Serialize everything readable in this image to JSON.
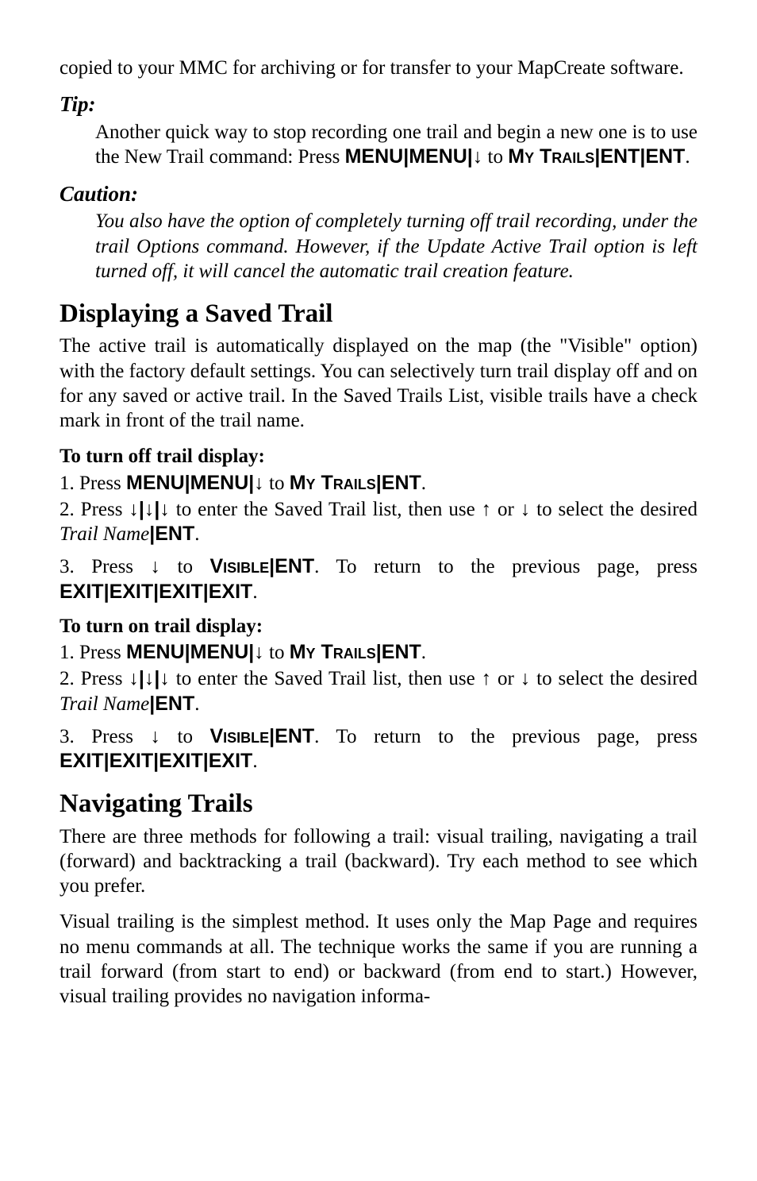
{
  "intro": "copied to your MMC for archiving or for transfer to your MapCreate software.",
  "tip": {
    "label": "Tip:",
    "body_pre": "Another quick way to stop recording one trail and begin a new one is to use the New Trail command: Press ",
    "keys1": "MENU",
    "sep": "|",
    "keys2": "MENU",
    "arrow_down": "↓",
    "to": " to ",
    "my": "My ",
    "trails_sc": "Trails",
    "ent": "ENT",
    "period": "."
  },
  "caution": {
    "label": "Caution:",
    "body": "You also have the option of completely turning off trail recording, under the trail Options command. However, if the Update Active Trail option is left turned off, it will cancel the automatic trail creation feature."
  },
  "displaying": {
    "heading": "Displaying a Saved Trail",
    "body": "The active trail is automatically displayed on the map (the \"Visible\" option) with the factory default settings. You can selectively turn trail display off and on for any saved or active trail. In the Saved Trails List, visible trails have a check mark in front of the trail name."
  },
  "off": {
    "subhead": "To turn off trail display:",
    "s1_pre": "1. Press ",
    "menu": "MENU",
    "sep": "|",
    "arrow_down": "↓",
    "to": " to ",
    "my": "My ",
    "trails_sc": "Trails",
    "ent": "ENT",
    "period": ".",
    "s2_pre": "2. Press ",
    "s2_mid": " to enter the Saved Trail list, then use ",
    "arrow_up": "↑",
    "or": " or ",
    "s2_post": " to select the desired ",
    "trail_name": "Trail Name",
    "s3_pre": "3. Press ",
    "visible_sc": "Visible",
    "s3_mid": ". To return to the previous page, press ",
    "exit": "EXIT"
  },
  "on": {
    "subhead": "To turn on trail display:",
    "s1_pre": "1. Press ",
    "s2_pre": "2. Press ",
    "s2_mid": " to enter the Saved Trail list, then use ",
    "s2_post": " to select the desired ",
    "trail_name": "Trail Name",
    "s3_pre": "3. Press ",
    "s3_mid": ". To return to the previous page, press "
  },
  "nav": {
    "heading": "Navigating Trails",
    "p1": "There are three methods for following a trail: visual trailing, navigating a trail (forward) and backtracking a trail (backward). Try each method to see which you prefer.",
    "p2": "Visual trailing is the simplest method. It uses only the Map Page and requires no menu commands at all. The technique works the same if you are running a trail forward (from start to end) or backward (from end to start.) However, visual trailing provides no navigation informa-"
  }
}
